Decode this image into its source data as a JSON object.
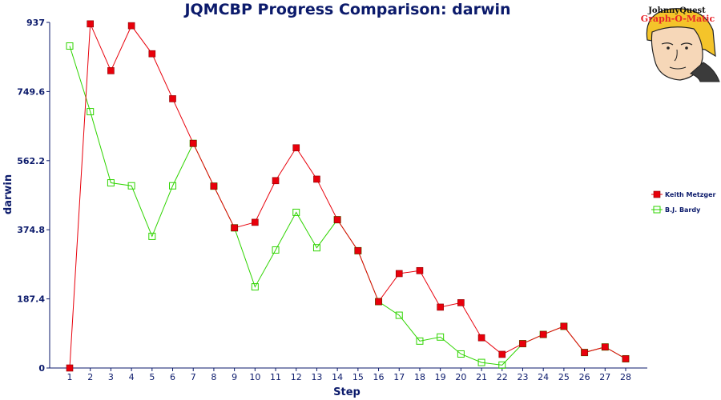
{
  "chart_data": {
    "type": "line",
    "title": "JQMCBP Progress Comparison: darwin",
    "xlabel": "Step",
    "ylabel": "darwin",
    "x": [
      1,
      2,
      3,
      4,
      5,
      6,
      7,
      8,
      9,
      10,
      11,
      12,
      13,
      14,
      15,
      16,
      17,
      18,
      19,
      20,
      21,
      22,
      23,
      24,
      25,
      26,
      27,
      28
    ],
    "ylim": [
      0,
      937
    ],
    "yticks": [
      "0",
      "187.4",
      "374.8",
      "562.2",
      "749.6",
      "937"
    ],
    "ytick_values": [
      0,
      187.4,
      374.8,
      562.2,
      749.6,
      937
    ],
    "grid": false,
    "legend_position": "right",
    "series": [
      {
        "name": "Keith Metzger",
        "color": "#e8000b",
        "marker": "filled-square",
        "values": [
          0,
          933,
          806,
          928,
          852,
          730,
          609,
          493,
          380,
          395,
          508,
          597,
          512,
          402,
          318,
          180,
          256,
          264,
          165,
          177,
          82,
          37,
          66,
          91,
          113,
          42,
          57,
          25
        ]
      },
      {
        "name": "B.J. Bardy",
        "color": "#2fd400",
        "marker": "open-square",
        "values": [
          873,
          695,
          502,
          494,
          357,
          494,
          609,
          493,
          380,
          220,
          320,
          422,
          326,
          402,
          318,
          180,
          143,
          73,
          84,
          38,
          15,
          8,
          66,
          91,
          113,
          42,
          57,
          25
        ]
      }
    ]
  },
  "logo": {
    "line1": "JohnnyQuest",
    "line2": "Graph-O-Matic"
  }
}
